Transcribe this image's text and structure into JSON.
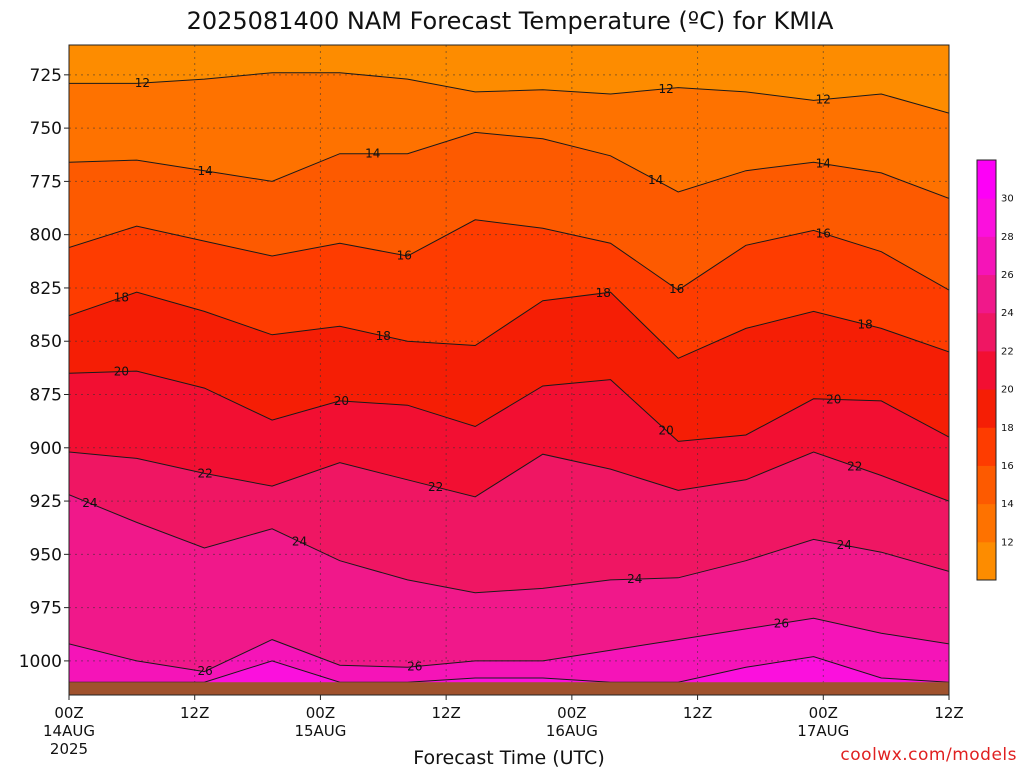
{
  "chart_data": {
    "type": "heatmap",
    "title": "2025081400 NAM Forecast Temperature (ºC) for KMIA",
    "xlabel": "Forecast Time (UTC)",
    "ylabel": "",
    "x_ticks": [
      {
        "hour": 0,
        "label": "00Z",
        "sub": [
          "14AUG",
          "2025"
        ]
      },
      {
        "hour": 12,
        "label": "12Z",
        "sub": []
      },
      {
        "hour": 24,
        "label": "00Z",
        "sub": [
          "15AUG"
        ]
      },
      {
        "hour": 36,
        "label": "12Z",
        "sub": []
      },
      {
        "hour": 48,
        "label": "00Z",
        "sub": [
          "16AUG"
        ]
      },
      {
        "hour": 60,
        "label": "12Z",
        "sub": []
      },
      {
        "hour": 72,
        "label": "00Z",
        "sub": [
          "17AUG"
        ]
      },
      {
        "hour": 84,
        "label": "12Z",
        "sub": []
      }
    ],
    "xlim_hours": [
      0,
      84
    ],
    "y_ticks": [
      725,
      750,
      775,
      800,
      825,
      850,
      875,
      900,
      925,
      950,
      975,
      1000
    ],
    "ylim_hpa": [
      711,
      1016
    ],
    "ground_hpa": 1010,
    "contour_levels": [
      12,
      14,
      16,
      18,
      20,
      22,
      24,
      26,
      28,
      30
    ],
    "colorbar": {
      "labels": [
        12,
        14,
        16,
        18,
        20,
        22,
        24,
        26,
        28,
        30
      ],
      "colors": [
        "#fd8c00",
        "#fe7200",
        "#fd5a00",
        "#fe3c00",
        "#f51e05",
        "#f20f32",
        "#ef1663",
        "#f0188a",
        "#f514b8",
        "#fb10dd",
        "#fd00f7"
      ]
    },
    "grid": true,
    "contour_lines": [
      {
        "level": 12,
        "hpa": [
          729,
          729,
          727,
          724,
          724,
          727,
          733,
          732,
          734,
          731,
          733,
          737,
          734,
          743
        ],
        "label_hours": [
          7,
          57,
          72
        ]
      },
      {
        "level": 14,
        "hpa": [
          766,
          765,
          770,
          775,
          762,
          762,
          752,
          755,
          763,
          780,
          770,
          766,
          771,
          783
        ],
        "label_hours": [
          13,
          29,
          56,
          72
        ]
      },
      {
        "level": 16,
        "hpa": [
          806,
          796,
          803,
          810,
          804,
          810,
          793,
          797,
          804,
          826,
          805,
          798,
          808,
          826
        ],
        "label_hours": [
          32,
          58,
          72
        ]
      },
      {
        "level": 18,
        "hpa": [
          838,
          827,
          836,
          847,
          843,
          850,
          852,
          831,
          827,
          858,
          844,
          836,
          844,
          855
        ],
        "label_hours": [
          5,
          30,
          51,
          76
        ]
      },
      {
        "level": 20,
        "hpa": [
          865,
          864,
          872,
          887,
          878,
          880,
          890,
          871,
          868,
          897,
          894,
          877,
          878,
          895
        ],
        "label_hours": [
          5,
          26,
          57,
          73
        ]
      },
      {
        "level": 22,
        "hpa": [
          902,
          905,
          912,
          918,
          907,
          915,
          923,
          903,
          910,
          920,
          915,
          902,
          913,
          925
        ],
        "label_hours": [
          13,
          35,
          75
        ]
      },
      {
        "level": 24,
        "hpa": [
          922,
          935,
          947,
          938,
          953,
          962,
          968,
          966,
          962,
          961,
          953,
          943,
          949,
          958
        ],
        "label_hours": [
          2,
          22,
          54,
          74
        ]
      },
      {
        "level": 26,
        "hpa": [
          992,
          1000,
          1005,
          990,
          1002,
          1003,
          1000,
          1000,
          995,
          990,
          985,
          980,
          987,
          992
        ],
        "label_hours": [
          13,
          33,
          68
        ]
      },
      {
        "level": 28,
        "hpa": [
          1010,
          1010,
          1010,
          1000,
          1010,
          1010,
          1008,
          1008,
          1010,
          1010,
          1003,
          998,
          1008,
          1010
        ],
        "label_hours": []
      }
    ]
  },
  "credit": "coolwx.com/models"
}
